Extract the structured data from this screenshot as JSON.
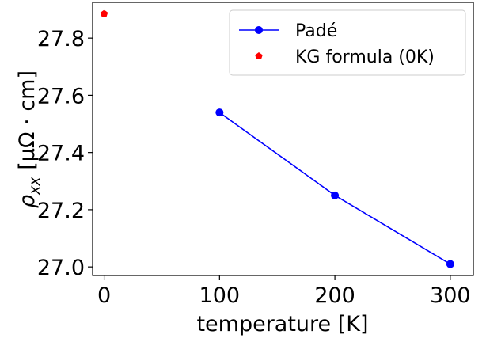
{
  "chart_data": {
    "type": "scatter",
    "xlabel": "temperature [K]",
    "ylabel_symbol": "ρ",
    "ylabel_subscript": "xx",
    "ylabel_unit": " [μΩ · cm]",
    "xlim": [
      -10,
      320
    ],
    "ylim": [
      26.97,
      27.925
    ],
    "xticks": [
      0,
      100,
      200,
      300
    ],
    "yticks": [
      27.0,
      27.2,
      27.4,
      27.6,
      27.8
    ],
    "ytick_labels": [
      "27.0",
      "27.2",
      "27.4",
      "27.6",
      "27.8"
    ],
    "grid": false,
    "legend_position": "top-right",
    "series": [
      {
        "name": "Padé",
        "kind": "line-marker",
        "marker": "circle",
        "color": "#0000ff",
        "x": [
          100,
          200,
          300
        ],
        "y": [
          27.54,
          27.25,
          27.01
        ]
      },
      {
        "name": "KG formula (0K)",
        "kind": "marker",
        "marker": "pentagon",
        "color": "#ff0000",
        "x": [
          0
        ],
        "y": [
          27.885
        ]
      }
    ]
  }
}
